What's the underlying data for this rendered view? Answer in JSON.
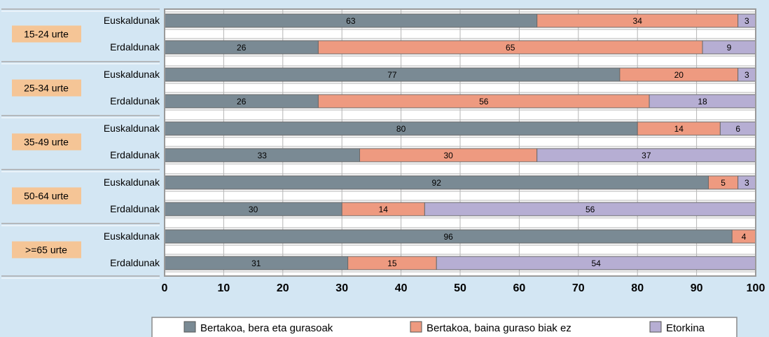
{
  "chart_data": {
    "type": "bar",
    "orientation": "horizontal",
    "stacked": true,
    "groups": [
      {
        "label": "15-24 urte",
        "rows": [
          {
            "label": "Euskaldunak",
            "values": [
              63,
              34,
              3
            ]
          },
          {
            "label": "Erdaldunak",
            "values": [
              26,
              65,
              9
            ]
          }
        ]
      },
      {
        "label": "25-34 urte",
        "rows": [
          {
            "label": "Euskaldunak",
            "values": [
              77,
              20,
              3
            ]
          },
          {
            "label": "Erdaldunak",
            "values": [
              26,
              56,
              18
            ]
          }
        ]
      },
      {
        "label": "35-49 urte",
        "rows": [
          {
            "label": "Euskaldunak",
            "values": [
              80,
              14,
              6
            ]
          },
          {
            "label": "Erdaldunak",
            "values": [
              33,
              30,
              37
            ]
          }
        ]
      },
      {
        "label": "50-64 urte",
        "rows": [
          {
            "label": "Euskaldunak",
            "values": [
              92,
              5,
              3
            ]
          },
          {
            "label": "Erdaldunak",
            "values": [
              30,
              14,
              56
            ]
          }
        ]
      },
      {
        "label": ">=65 urte",
        "rows": [
          {
            "label": "Euskaldunak",
            "values": [
              96,
              4,
              0
            ]
          },
          {
            "label": "Erdaldunak",
            "values": [
              31,
              15,
              54
            ]
          }
        ]
      }
    ],
    "series": [
      {
        "name": "Bertakoa, bera eta gurasoak",
        "color": "#7a8a94"
      },
      {
        "name": "Bertakoa, baina guraso biak ez",
        "color": "#ee9a80"
      },
      {
        "name": "Etorkina",
        "color": "#b6aed3"
      }
    ],
    "xlim": [
      0,
      100
    ],
    "xticks": [
      0,
      10,
      20,
      30,
      40,
      50,
      60,
      70,
      80,
      90,
      100
    ],
    "grid": true,
    "legend_position": "bottom",
    "group_label_color": "#f5c596",
    "plot_background": "#ffffff"
  }
}
